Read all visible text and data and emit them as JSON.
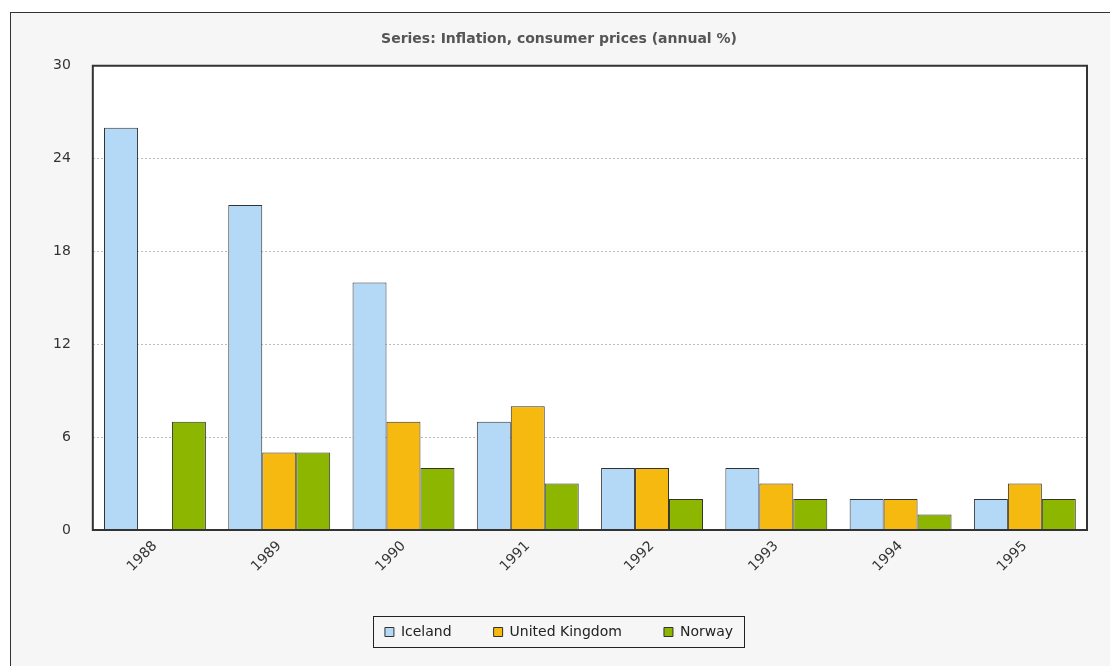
{
  "chart_data": {
    "type": "bar",
    "title": "Series: Inflation, consumer prices (annual %)",
    "categories": [
      "1988",
      "1989",
      "1990",
      "1991",
      "1992",
      "1993",
      "1994",
      "1995"
    ],
    "series": [
      {
        "name": "Iceland",
        "color": "#b3d9f7",
        "values": [
          26,
          21,
          16,
          7,
          4,
          4,
          2,
          2
        ]
      },
      {
        "name": "United Kingdom",
        "color": "#f5b90f",
        "values": [
          null,
          5,
          7,
          8,
          4,
          3,
          2,
          3
        ]
      },
      {
        "name": "Norway",
        "color": "#8db600",
        "values": [
          7,
          5,
          4,
          3,
          2,
          2,
          1,
          2
        ]
      }
    ],
    "ylim": [
      0,
      30
    ],
    "yticks": [
      0,
      6,
      12,
      18,
      24,
      30
    ],
    "grid": "y",
    "legend": "bottom"
  }
}
